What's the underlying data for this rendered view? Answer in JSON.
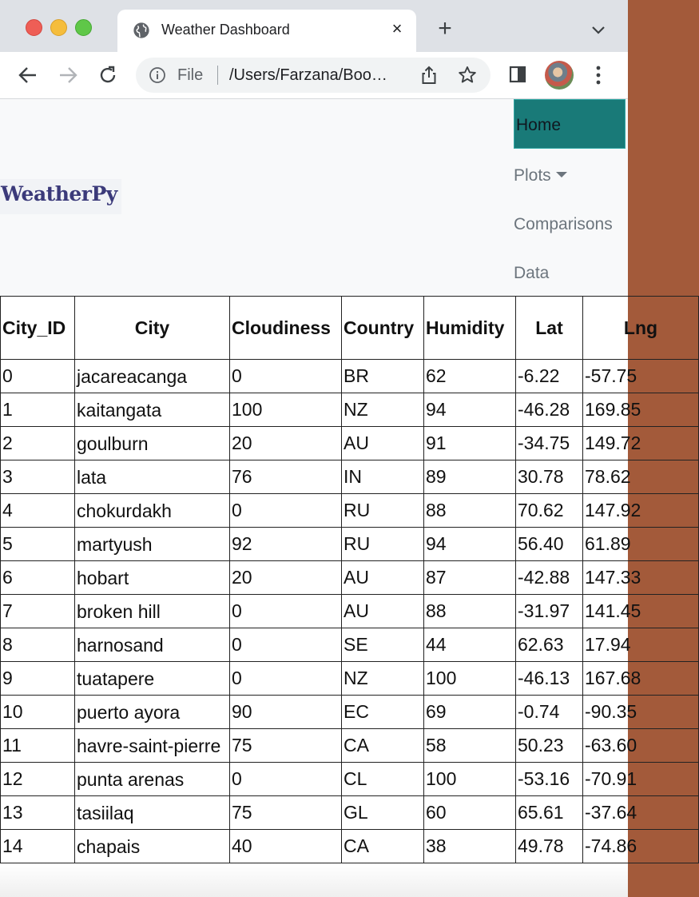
{
  "browser": {
    "tab_title": "Weather Dashboard",
    "new_tab_symbol": "+",
    "close_symbol": "×",
    "scheme_label": "File",
    "url": "/Users/Farzana/Boo…"
  },
  "navbar": {
    "brand": "WeatherPy",
    "home": "Home",
    "plots": "Plots",
    "comparisons": "Comparisons",
    "data": "Data",
    "active_color": "#197a78"
  },
  "table": {
    "headers": [
      "City_ID",
      "City",
      "Cloudiness",
      "Country",
      "Humidity",
      "Lat",
      "Lng"
    ],
    "rows": [
      [
        "0",
        "jacareacanga",
        "0",
        "BR",
        "62",
        "-6.22",
        "-57.75"
      ],
      [
        "1",
        "kaitangata",
        "100",
        "NZ",
        "94",
        "-46.28",
        "169.85"
      ],
      [
        "2",
        "goulburn",
        "20",
        "AU",
        "91",
        "-34.75",
        "149.72"
      ],
      [
        "3",
        "lata",
        "76",
        "IN",
        "89",
        "30.78",
        "78.62"
      ],
      [
        "4",
        "chokurdakh",
        "0",
        "RU",
        "88",
        "70.62",
        "147.92"
      ],
      [
        "5",
        "martyush",
        "92",
        "RU",
        "94",
        "56.40",
        "61.89"
      ],
      [
        "6",
        "hobart",
        "20",
        "AU",
        "87",
        "-42.88",
        "147.33"
      ],
      [
        "7",
        "broken hill",
        "0",
        "AU",
        "88",
        "-31.97",
        "141.45"
      ],
      [
        "8",
        "harnosand",
        "0",
        "SE",
        "44",
        "62.63",
        "17.94"
      ],
      [
        "9",
        "tuatapere",
        "0",
        "NZ",
        "100",
        "-46.13",
        "167.68"
      ],
      [
        "10",
        "puerto ayora",
        "90",
        "EC",
        "69",
        "-0.74",
        "-90.35"
      ],
      [
        "11",
        "havre-saint-pierre",
        "75",
        "CA",
        "58",
        "50.23",
        "-63.60"
      ],
      [
        "12",
        "punta arenas",
        "0",
        "CL",
        "100",
        "-53.16",
        "-70.91"
      ],
      [
        "13",
        "tasiilaq",
        "75",
        "GL",
        "60",
        "65.61",
        "-37.64"
      ],
      [
        "14",
        "chapais",
        "40",
        "CA",
        "38",
        "49.78",
        "-74.86"
      ]
    ]
  }
}
